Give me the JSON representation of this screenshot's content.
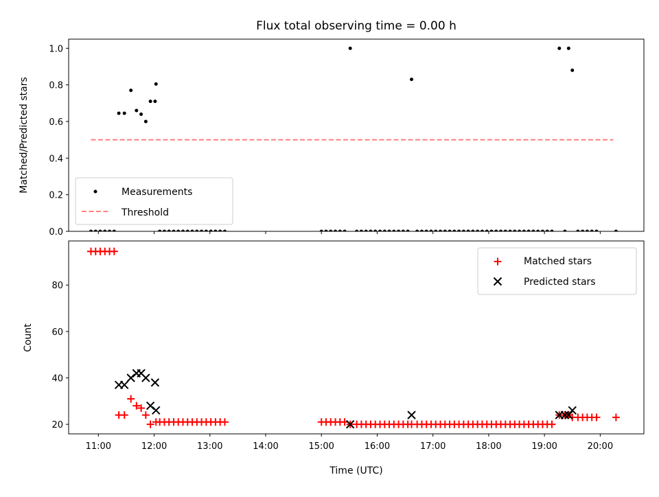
{
  "chart_data": [
    {
      "type": "scatter",
      "title": "Flux total observing time = 0.00 h",
      "xlabel": "",
      "ylabel": "Matched/Predicted stars",
      "xlim": [
        "10:28",
        "20:47"
      ],
      "ylim": [
        0,
        1.05
      ],
      "yticks": [
        0.0,
        0.2,
        0.4,
        0.6,
        0.8,
        1.0
      ],
      "ytick_labels": [
        "0.0",
        "0.2",
        "0.4",
        "0.6",
        "0.8",
        "1.0"
      ],
      "legend": "lower-left",
      "series": [
        {
          "name": "Measurements",
          "marker": "dot",
          "color": "#000000",
          "points": [
            [
              "10:52",
              0.0
            ],
            [
              "10:57",
              0.0
            ],
            [
              "11:02",
              0.0
            ],
            [
              "11:07",
              0.0
            ],
            [
              "11:12",
              0.0
            ],
            [
              "11:17",
              0.0
            ],
            [
              "11:22",
              0.645
            ],
            [
              "11:28",
              0.645
            ],
            [
              "11:35",
              0.77
            ],
            [
              "11:41",
              0.66
            ],
            [
              "11:46",
              0.64
            ],
            [
              "11:51",
              0.6
            ],
            [
              "11:56",
              0.71
            ],
            [
              "12:01",
              0.71
            ],
            [
              "12:02",
              0.805
            ],
            [
              "12:06",
              0.0
            ],
            [
              "12:11",
              0.0
            ],
            [
              "12:16",
              0.0
            ],
            [
              "12:21",
              0.0
            ],
            [
              "12:26",
              0.0
            ],
            [
              "12:31",
              0.0
            ],
            [
              "12:36",
              0.0
            ],
            [
              "12:41",
              0.0
            ],
            [
              "12:46",
              0.0
            ],
            [
              "12:51",
              0.0
            ],
            [
              "12:56",
              0.0
            ],
            [
              "13:01",
              0.0
            ],
            [
              "13:06",
              0.0
            ],
            [
              "13:11",
              0.0
            ],
            [
              "13:16",
              0.0
            ],
            [
              "15:00",
              0.0
            ],
            [
              "15:05",
              0.0
            ],
            [
              "15:10",
              0.0
            ],
            [
              "15:15",
              0.0
            ],
            [
              "15:20",
              0.0
            ],
            [
              "15:25",
              0.0
            ],
            [
              "15:31",
              1.0
            ],
            [
              "15:38",
              0.0
            ],
            [
              "15:43",
              0.0
            ],
            [
              "15:48",
              0.0
            ],
            [
              "15:53",
              0.0
            ],
            [
              "15:58",
              0.0
            ],
            [
              "16:03",
              0.0
            ],
            [
              "16:08",
              0.0
            ],
            [
              "16:13",
              0.0
            ],
            [
              "16:18",
              0.0
            ],
            [
              "16:23",
              0.0
            ],
            [
              "16:28",
              0.0
            ],
            [
              "16:33",
              0.0
            ],
            [
              "16:37",
              0.83
            ],
            [
              "16:43",
              0.0
            ],
            [
              "16:48",
              0.0
            ],
            [
              "16:53",
              0.0
            ],
            [
              "16:58",
              0.0
            ],
            [
              "17:03",
              0.0
            ],
            [
              "17:08",
              0.0
            ],
            [
              "17:13",
              0.0
            ],
            [
              "17:18",
              0.0
            ],
            [
              "17:23",
              0.0
            ],
            [
              "17:28",
              0.0
            ],
            [
              "17:33",
              0.0
            ],
            [
              "17:38",
              0.0
            ],
            [
              "17:43",
              0.0
            ],
            [
              "17:48",
              0.0
            ],
            [
              "17:53",
              0.0
            ],
            [
              "17:58",
              0.0
            ],
            [
              "18:03",
              0.0
            ],
            [
              "18:08",
              0.0
            ],
            [
              "18:13",
              0.0
            ],
            [
              "18:18",
              0.0
            ],
            [
              "18:23",
              0.0
            ],
            [
              "18:28",
              0.0
            ],
            [
              "18:33",
              0.0
            ],
            [
              "18:38",
              0.0
            ],
            [
              "18:43",
              0.0
            ],
            [
              "18:48",
              0.0
            ],
            [
              "18:53",
              0.0
            ],
            [
              "18:58",
              0.0
            ],
            [
              "19:03",
              0.0
            ],
            [
              "19:08",
              0.0
            ],
            [
              "19:16",
              1.0
            ],
            [
              "19:22",
              0.0
            ],
            [
              "19:26",
              1.0
            ],
            [
              "19:30",
              0.88
            ],
            [
              "19:36",
              0.0
            ],
            [
              "19:41",
              0.0
            ],
            [
              "19:46",
              0.0
            ],
            [
              "19:51",
              0.0
            ],
            [
              "19:56",
              0.0
            ],
            [
              "20:17",
              0.0
            ]
          ]
        },
        {
          "name": "Threshold",
          "type": "line",
          "style": "dashed",
          "color": "#ff7f7f",
          "points": [
            [
              "10:52",
              0.5
            ],
            [
              "20:14",
              0.5
            ]
          ]
        }
      ]
    },
    {
      "type": "scatter",
      "title": "",
      "xlabel": "Time (UTC)",
      "ylabel": "Count",
      "xlim": [
        "10:28",
        "20:47"
      ],
      "ylim": [
        15.9,
        99
      ],
      "xticks": [
        "11:00",
        "12:00",
        "13:00",
        "14:00",
        "15:00",
        "16:00",
        "17:00",
        "18:00",
        "19:00",
        "20:00"
      ],
      "yticks": [
        20,
        40,
        60,
        80
      ],
      "ytick_labels": [
        "20",
        "40",
        "60",
        "80"
      ],
      "legend": "top-right",
      "series": [
        {
          "name": "Matched stars",
          "marker": "plus",
          "color": "#ff0000",
          "points": [
            [
              "10:52",
              94.5
            ],
            [
              "10:57",
              94.5
            ],
            [
              "11:02",
              94.5
            ],
            [
              "11:07",
              94.5
            ],
            [
              "11:12",
              94.5
            ],
            [
              "11:17",
              94.5
            ],
            [
              "11:22",
              24
            ],
            [
              "11:28",
              24
            ],
            [
              "11:35",
              31
            ],
            [
              "11:41",
              28
            ],
            [
              "11:46",
              27
            ],
            [
              "11:51",
              24
            ],
            [
              "11:56",
              20
            ],
            [
              "12:02",
              21
            ],
            [
              "12:06",
              21
            ],
            [
              "12:11",
              21
            ],
            [
              "12:16",
              21
            ],
            [
              "12:21",
              21
            ],
            [
              "12:26",
              21
            ],
            [
              "12:31",
              21
            ],
            [
              "12:36",
              21
            ],
            [
              "12:41",
              21
            ],
            [
              "12:46",
              21
            ],
            [
              "12:51",
              21
            ],
            [
              "12:56",
              21
            ],
            [
              "13:01",
              21
            ],
            [
              "13:06",
              21
            ],
            [
              "13:11",
              21
            ],
            [
              "13:16",
              21
            ],
            [
              "15:00",
              21
            ],
            [
              "15:05",
              21
            ],
            [
              "15:10",
              21
            ],
            [
              "15:15",
              21
            ],
            [
              "15:20",
              21
            ],
            [
              "15:25",
              21
            ],
            [
              "15:31",
              20
            ],
            [
              "15:38",
              20
            ],
            [
              "15:43",
              20
            ],
            [
              "15:48",
              20
            ],
            [
              "15:53",
              20
            ],
            [
              "15:58",
              20
            ],
            [
              "16:03",
              20
            ],
            [
              "16:08",
              20
            ],
            [
              "16:13",
              20
            ],
            [
              "16:18",
              20
            ],
            [
              "16:23",
              20
            ],
            [
              "16:28",
              20
            ],
            [
              "16:33",
              20
            ],
            [
              "16:37",
              20
            ],
            [
              "16:43",
              20
            ],
            [
              "16:48",
              20
            ],
            [
              "16:53",
              20
            ],
            [
              "16:58",
              20
            ],
            [
              "17:03",
              20
            ],
            [
              "17:08",
              20
            ],
            [
              "17:13",
              20
            ],
            [
              "17:18",
              20
            ],
            [
              "17:23",
              20
            ],
            [
              "17:28",
              20
            ],
            [
              "17:33",
              20
            ],
            [
              "17:38",
              20
            ],
            [
              "17:43",
              20
            ],
            [
              "17:48",
              20
            ],
            [
              "17:53",
              20
            ],
            [
              "17:58",
              20
            ],
            [
              "18:03",
              20
            ],
            [
              "18:08",
              20
            ],
            [
              "18:13",
              20
            ],
            [
              "18:18",
              20
            ],
            [
              "18:23",
              20
            ],
            [
              "18:28",
              20
            ],
            [
              "18:33",
              20
            ],
            [
              "18:38",
              20
            ],
            [
              "18:43",
              20
            ],
            [
              "18:48",
              20
            ],
            [
              "18:53",
              20
            ],
            [
              "18:58",
              20
            ],
            [
              "19:03",
              20
            ],
            [
              "19:08",
              20
            ],
            [
              "19:16",
              24
            ],
            [
              "19:22",
              24
            ],
            [
              "19:26",
              24
            ],
            [
              "19:30",
              23
            ],
            [
              "19:36",
              23
            ],
            [
              "19:41",
              23
            ],
            [
              "19:46",
              23
            ],
            [
              "19:51",
              23
            ],
            [
              "19:56",
              23
            ],
            [
              "20:17",
              23
            ]
          ]
        },
        {
          "name": "Predicted stars",
          "marker": "x",
          "color": "#000000",
          "points": [
            [
              "11:22",
              37
            ],
            [
              "11:28",
              37
            ],
            [
              "11:35",
              40
            ],
            [
              "11:41",
              42
            ],
            [
              "11:46",
              42
            ],
            [
              "11:51",
              40
            ],
            [
              "11:56",
              28
            ],
            [
              "12:01",
              38
            ],
            [
              "12:02",
              26
            ],
            [
              "15:31",
              20
            ],
            [
              "16:37",
              24
            ],
            [
              "19:16",
              24
            ],
            [
              "19:22",
              24
            ],
            [
              "19:26",
              24
            ],
            [
              "19:30",
              26
            ]
          ]
        }
      ]
    }
  ]
}
